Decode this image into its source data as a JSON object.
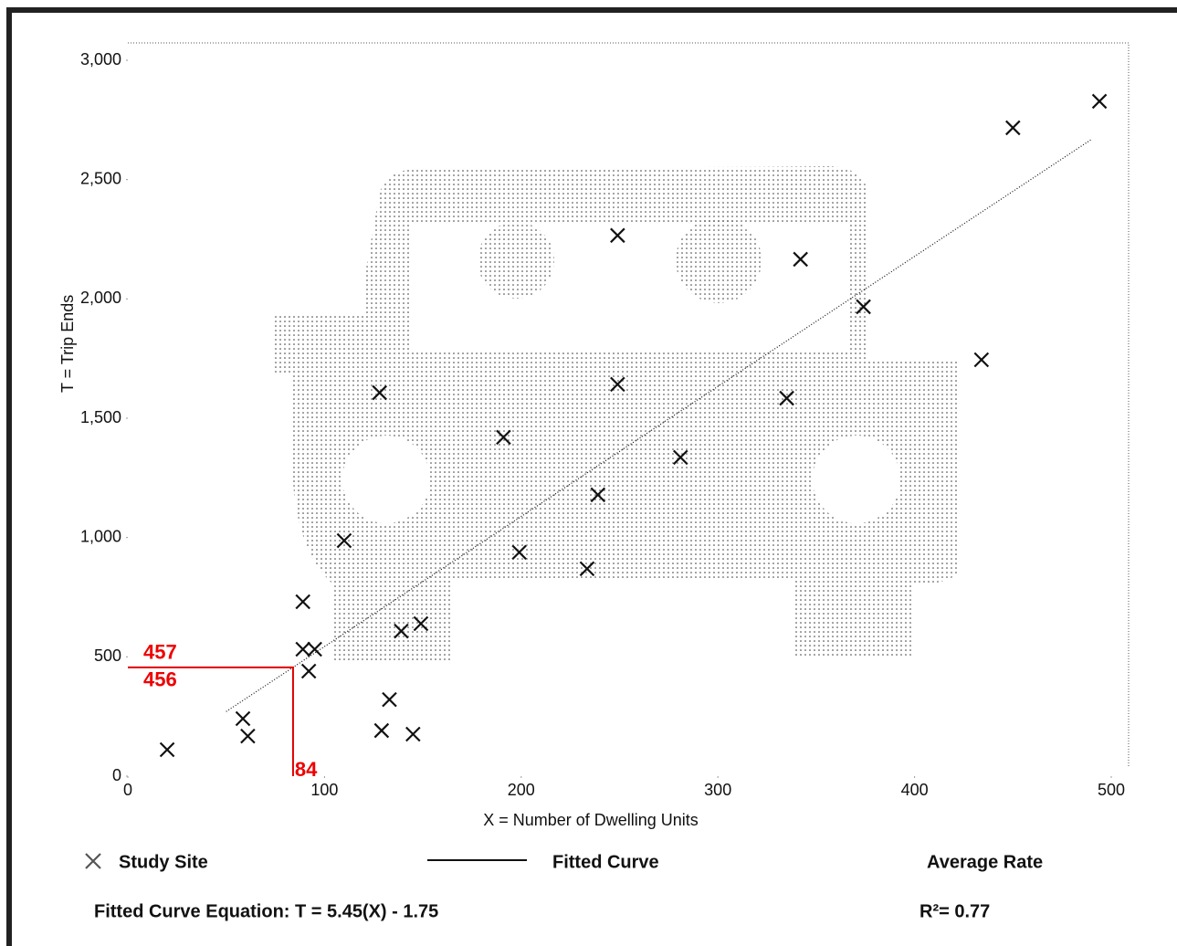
{
  "chart_data": {
    "type": "scatter",
    "x_label": "X = Number of Dwelling Units",
    "y_label": "T = Trip Ends",
    "xlim": [
      0,
      500
    ],
    "xticks": [
      0,
      100,
      200,
      300,
      400,
      500
    ],
    "ylim": [
      0,
      3000
    ],
    "yticks": [
      0,
      500,
      {
        "value": 1000,
        "label": "1,000"
      },
      {
        "value": 1500,
        "label": "1,500"
      },
      {
        "value": 2000,
        "label": "2,000"
      },
      {
        "value": 2500,
        "label": "2,500"
      },
      {
        "value": 3000,
        "label": "3,000"
      }
    ],
    "series": [
      {
        "name": "Study Site",
        "color": "#111111",
        "x": [
          20,
          58.5,
          61,
          89,
          89,
          95,
          92,
          110,
          128,
          129,
          133,
          139,
          145,
          149,
          191,
          199,
          233.5,
          239,
          249,
          249,
          281,
          335,
          342,
          374,
          434,
          450,
          494
        ],
        "values": [
          111,
          241,
          168,
          731,
          532,
          532,
          440,
          987,
          1607,
          191,
          321,
          608,
          176,
          639,
          1420,
          938,
          869,
          1179,
          2266,
          1642,
          1336,
          1584,
          2166,
          1967,
          1745,
          2717,
          2828
        ]
      }
    ],
    "fitted_curve": {
      "name": "Fitted Curve",
      "color": "#111111",
      "x": [
        50,
        490
      ],
      "values": [
        270.75,
        2668.75
      ]
    },
    "average_rate": {
      "name": "Average Rate"
    },
    "annotation": {
      "x": 84,
      "y": 456,
      "y_upper": 457,
      "color": "#e00000"
    },
    "equation": "Fitted Curve Equation: T = 5.45(X) - 1.75",
    "r_squared": "R²= 0.77"
  }
}
